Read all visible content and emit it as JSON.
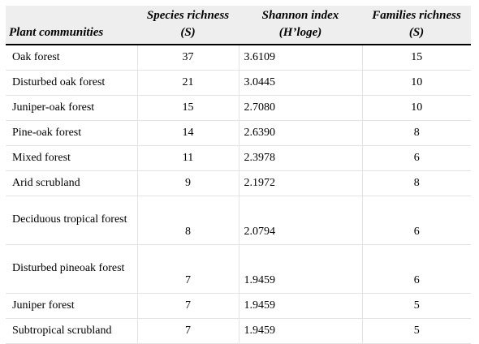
{
  "table": {
    "headers": [
      {
        "line1": "",
        "line2": "Plant communities"
      },
      {
        "line1": "Species richness",
        "line2": "(S)"
      },
      {
        "line1": "Shannon index",
        "line2": "(H’loge)"
      },
      {
        "line1": "Families richness",
        "line2": "(S)"
      }
    ],
    "rows": [
      {
        "community": "Oak forest",
        "species": "37",
        "shannon": "3.6109",
        "families": "15"
      },
      {
        "community": "Disturbed oak forest",
        "species": "21",
        "shannon": "3.0445",
        "families": "10"
      },
      {
        "community": "Juniper-oak forest",
        "species": "15",
        "shannon": "2.7080",
        "families": "10"
      },
      {
        "community": "Pine-oak forest",
        "species": "14",
        "shannon": "2.6390",
        "families": "8"
      },
      {
        "community": "Mixed forest",
        "species": "11",
        "shannon": "2.3978",
        "families": "6"
      },
      {
        "community": "Arid scrubland",
        "species": "9",
        "shannon": "2.1972",
        "families": "8"
      },
      {
        "community": "Deciduous tropical forest",
        "species": "8",
        "shannon": "2.0794",
        "families": "6"
      },
      {
        "community": "Disturbed pineoak forest",
        "species": "7",
        "shannon": "1.9459",
        "families": "6"
      },
      {
        "community": "Juniper forest",
        "species": "7",
        "shannon": "1.9459",
        "families": "5"
      },
      {
        "community": "Subtropical scrubland",
        "species": "7",
        "shannon": "1.9459",
        "families": "5"
      }
    ]
  }
}
